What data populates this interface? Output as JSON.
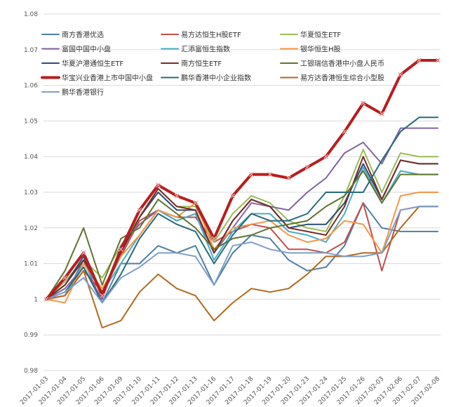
{
  "chart_data": {
    "type": "line",
    "title": "",
    "xlabel": "",
    "ylabel": "",
    "ylim": [
      0.98,
      1.08
    ],
    "yticks": [
      0.98,
      0.99,
      1,
      1.01,
      1.02,
      1.03,
      1.04,
      1.05,
      1.06,
      1.07,
      1.08
    ],
    "grid": "horizontal",
    "legend_placement": "top-left, 3 columns",
    "x": [
      "2017-01-03",
      "2017-01-04",
      "2017-01-05",
      "2017-01-06",
      "2017-01-09",
      "2017-01-10",
      "2017-01-11",
      "2017-01-12",
      "2017-01-13",
      "2017-01-16",
      "2017-01-17",
      "2017-01-18",
      "2017-01-19",
      "2017-01-20",
      "2017-01-23",
      "2017-01-24",
      "2017-01-25",
      "2017-01-26",
      "2017-02-03",
      "2017-02-06",
      "2017-02-07",
      "2017-02-08"
    ],
    "series": [
      {
        "name": "南方香港优选",
        "color": "#4f7fa3",
        "width": 2,
        "values": [
          1.0,
          1.001,
          1.011,
          0.999,
          1.01,
          1.01,
          1.015,
          1.013,
          1.015,
          1.004,
          1.013,
          1.018,
          1.017,
          1.011,
          1.008,
          1.009,
          1.015,
          1.027,
          1.02,
          1.019,
          1.019,
          1.019
        ]
      },
      {
        "name": "易方达恒生H股ETF",
        "color": "#c0504d",
        "width": 2,
        "values": [
          1.0,
          1.001,
          1.008,
          1.002,
          1.012,
          1.022,
          1.025,
          1.023,
          1.023,
          1.016,
          1.019,
          1.021,
          1.02,
          1.014,
          1.014,
          1.013,
          1.016,
          1.027,
          1.008,
          1.025,
          1.026,
          1.026
        ]
      },
      {
        "name": "华夏恒生ETF",
        "color": "#9bbb59",
        "width": 2,
        "values": [
          1.0,
          1.005,
          1.011,
          1.006,
          1.015,
          1.023,
          1.031,
          1.026,
          1.026,
          1.016,
          1.024,
          1.029,
          1.027,
          1.022,
          1.02,
          1.019,
          1.029,
          1.042,
          1.03,
          1.041,
          1.04,
          1.04
        ]
      },
      {
        "name": "富国中国中小盘",
        "color": "#8064a2",
        "width": 2,
        "values": [
          1.0,
          1.003,
          1.009,
          1.0,
          1.015,
          1.021,
          1.025,
          1.022,
          1.024,
          1.013,
          1.02,
          1.027,
          1.026,
          1.025,
          1.03,
          1.034,
          1.041,
          1.044,
          1.038,
          1.048,
          1.048,
          1.048
        ]
      },
      {
        "name": "汇添富恒生指数",
        "color": "#4bacc6",
        "width": 2,
        "values": [
          1.0,
          1.001,
          1.01,
          1.002,
          1.01,
          1.018,
          1.025,
          1.022,
          1.024,
          1.011,
          1.019,
          1.024,
          1.024,
          1.019,
          1.018,
          1.016,
          1.024,
          1.037,
          1.027,
          1.036,
          1.035,
          1.035
        ]
      },
      {
        "name": "银华恒生H股",
        "color": "#f79646",
        "width": 2,
        "values": [
          1.0,
          0.999,
          1.01,
          1.003,
          1.012,
          1.018,
          1.025,
          1.023,
          1.027,
          1.014,
          1.02,
          1.021,
          1.022,
          1.018,
          1.016,
          1.017,
          1.022,
          1.021,
          1.013,
          1.029,
          1.03,
          1.03
        ]
      },
      {
        "name": "华夏沪港通恒生ETF",
        "color": "#2c4d75",
        "width": 2,
        "values": [
          1.0,
          1.004,
          1.012,
          1.001,
          1.013,
          1.023,
          1.03,
          1.025,
          1.025,
          1.013,
          1.022,
          1.028,
          1.026,
          1.02,
          1.021,
          1.021,
          1.027,
          1.038,
          1.028,
          1.039,
          1.038,
          1.038
        ]
      },
      {
        "name": "南方恒生ETF",
        "color": "#772c2a",
        "width": 2,
        "values": [
          1.0,
          1.004,
          1.011,
          1.002,
          1.013,
          1.023,
          1.031,
          1.026,
          1.025,
          1.013,
          1.022,
          1.028,
          1.026,
          1.02,
          1.019,
          1.018,
          1.026,
          1.04,
          1.028,
          1.039,
          1.038,
          1.038
        ]
      },
      {
        "name": "工银瑞信香港中小盘人民币",
        "color": "#5f7530",
        "width": 2,
        "values": [
          1.0,
          1.008,
          1.02,
          1.004,
          1.017,
          1.02,
          1.028,
          1.024,
          1.02,
          1.014,
          1.017,
          1.018,
          1.02,
          1.021,
          1.022,
          1.026,
          1.029,
          1.036,
          1.027,
          1.035,
          1.035,
          1.035
        ]
      },
      {
        "name": "华宝兴业香港上市中国中小盘",
        "color": "#b81d1d",
        "width": 4,
        "markers": true,
        "values": [
          1.0,
          1.006,
          1.013,
          1.001,
          1.014,
          1.025,
          1.032,
          1.029,
          1.027,
          1.017,
          1.029,
          1.035,
          1.035,
          1.034,
          1.037,
          1.04,
          1.047,
          1.055,
          1.052,
          1.063,
          1.067,
          1.067
        ]
      },
      {
        "name": "鹏华香港中小企业指数",
        "color": "#276a7c",
        "width": 2,
        "values": [
          1.0,
          1.002,
          1.009,
          0.999,
          1.007,
          1.017,
          1.024,
          1.021,
          1.019,
          1.01,
          1.018,
          1.024,
          1.022,
          1.022,
          1.024,
          1.03,
          1.03,
          1.03,
          1.039,
          1.047,
          1.051,
          1.051
        ]
      },
      {
        "name": "易方达香港恒生综合小型股",
        "color": "#b36a1c",
        "width": 2,
        "values": [
          1.0,
          1.001,
          1.008,
          0.992,
          0.994,
          1.002,
          1.007,
          1.003,
          1.001,
          0.994,
          0.999,
          1.003,
          1.002,
          1.003,
          1.007,
          1.012,
          1.012,
          1.013,
          1.013,
          1.02,
          1.026,
          1.026
        ]
      },
      {
        "name": "鹏华香港银行",
        "color": "#7f9fc8",
        "width": 2,
        "values": [
          1.0,
          1.002,
          1.006,
          0.999,
          1.006,
          1.009,
          1.013,
          1.013,
          1.012,
          1.004,
          1.015,
          1.016,
          1.014,
          1.013,
          1.013,
          1.013,
          1.012,
          1.012,
          1.013,
          1.025,
          1.026,
          1.026
        ]
      }
    ]
  }
}
